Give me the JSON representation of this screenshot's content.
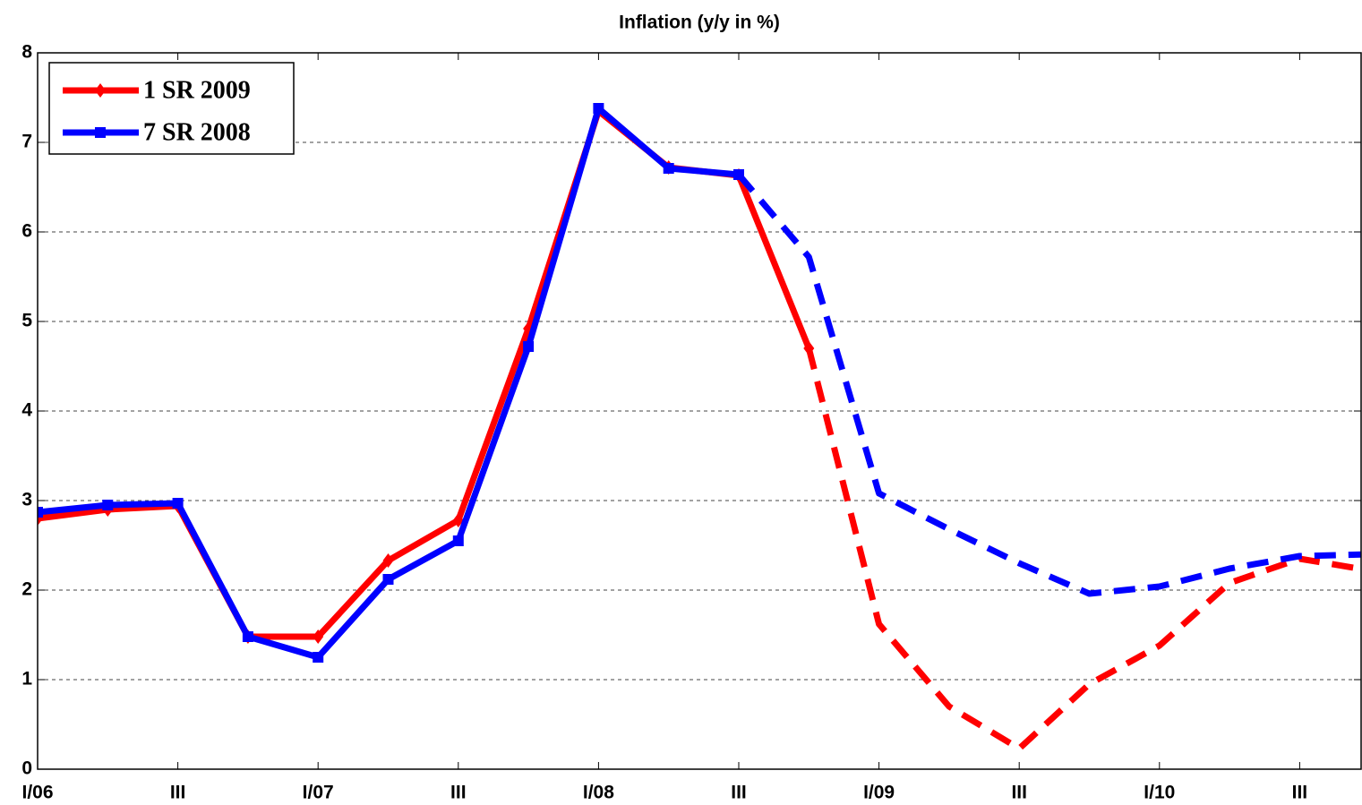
{
  "chart_data": {
    "type": "line",
    "title": "Inflation (y/y in %)",
    "categories": [
      "I/06",
      null,
      "III",
      null,
      "I/07",
      null,
      "III",
      null,
      "I/08",
      null,
      "III",
      null,
      "I/09",
      null,
      "III",
      null,
      "I/10",
      null,
      "III",
      null
    ],
    "series": [
      {
        "name": "1 SR 2009",
        "color": "#ff0000",
        "marker": "diamond",
        "dash_from": 11,
        "values": [
          2.8,
          2.9,
          2.94,
          1.48,
          1.48,
          2.33,
          2.78,
          4.92,
          7.35,
          6.72,
          6.63,
          4.7,
          1.62,
          0.7,
          0.23,
          0.95,
          1.38,
          2.08,
          2.35,
          2.22
        ]
      },
      {
        "name": "7 SR 2008",
        "color": "#0000ff",
        "marker": "square",
        "dash_from": 10,
        "values": [
          2.87,
          2.95,
          2.97,
          1.48,
          1.25,
          2.12,
          2.55,
          4.72,
          7.38,
          6.71,
          6.64,
          5.72,
          3.08,
          2.68,
          2.3,
          1.96,
          2.04,
          2.24,
          2.38,
          2.4
        ]
      }
    ],
    "ylim": [
      0,
      8
    ],
    "yticks": [
      0,
      1,
      2,
      3,
      4,
      5,
      6,
      7,
      8
    ],
    "grid": true,
    "legend": "top-left"
  }
}
